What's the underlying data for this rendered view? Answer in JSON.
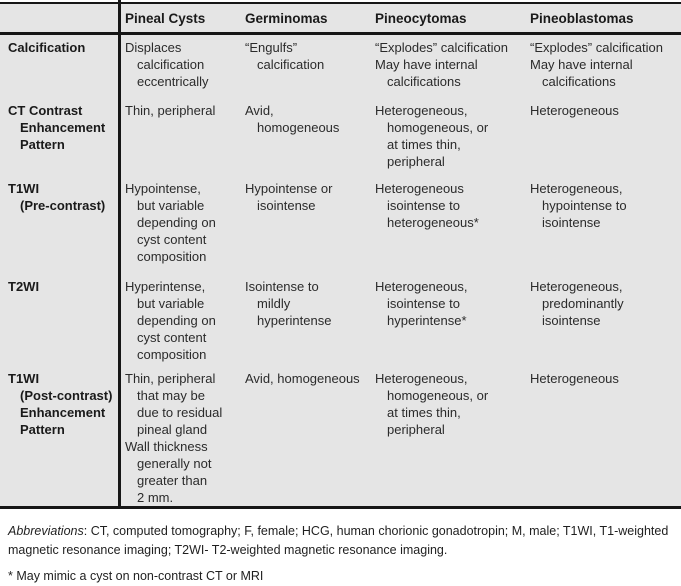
{
  "table": {
    "columns": [
      "",
      "Pineal Cysts",
      "Germinomas",
      "Pineocytomas",
      "Pineoblastomas"
    ],
    "rows": [
      {
        "label_lines": [
          {
            "t": "Calcification",
            "i": 0
          }
        ],
        "cells": [
          [
            {
              "t": "Displaces",
              "i": 0
            },
            {
              "t": "calcification",
              "i": 1
            },
            {
              "t": "eccentrically",
              "i": 1
            }
          ],
          [
            {
              "t": "“Engulfs”",
              "i": 0
            },
            {
              "t": "calcification",
              "i": 1
            }
          ],
          [
            {
              "t": "“Explodes” calcification",
              "i": 0
            },
            {
              "t": "May have internal",
              "i": 0
            },
            {
              "t": "calcifications",
              "i": 1
            }
          ],
          [
            {
              "t": "“Explodes” calcification",
              "i": 0
            },
            {
              "t": "May have internal",
              "i": 0
            },
            {
              "t": "calcifications",
              "i": 1
            }
          ]
        ]
      },
      {
        "label_lines": [
          {
            "t": "CT Contrast",
            "i": 0
          },
          {
            "t": "Enhancement",
            "i": 1
          },
          {
            "t": "Pattern",
            "i": 1
          }
        ],
        "cells": [
          [
            {
              "t": "Thin, peripheral",
              "i": 0
            }
          ],
          [
            {
              "t": "Avid,",
              "i": 0
            },
            {
              "t": "homogeneous",
              "i": 1
            }
          ],
          [
            {
              "t": "Heterogeneous,",
              "i": 0
            },
            {
              "t": "homogeneous, or",
              "i": 1
            },
            {
              "t": "at times thin,",
              "i": 1
            },
            {
              "t": "peripheral",
              "i": 1
            }
          ],
          [
            {
              "t": "Heterogeneous",
              "i": 0
            }
          ]
        ]
      },
      {
        "label_lines": [
          {
            "t": "T1WI",
            "i": 0
          },
          {
            "t": "(Pre-contrast)",
            "i": 1
          }
        ],
        "cells": [
          [
            {
              "t": "Hypointense,",
              "i": 0
            },
            {
              "t": "but variable",
              "i": 1
            },
            {
              "t": "depending on",
              "i": 1
            },
            {
              "t": "cyst content",
              "i": 1
            },
            {
              "t": "composition",
              "i": 1
            }
          ],
          [
            {
              "t": "Hypointense or",
              "i": 0
            },
            {
              "t": "isointense",
              "i": 1
            }
          ],
          [
            {
              "t": "Heterogeneous",
              "i": 0
            },
            {
              "t": "isointense to",
              "i": 1
            },
            {
              "t": "heterogeneous*",
              "i": 1
            }
          ],
          [
            {
              "t": "Heterogeneous,",
              "i": 0
            },
            {
              "t": "hypointense to",
              "i": 1
            },
            {
              "t": "isointense",
              "i": 1
            }
          ]
        ]
      },
      {
        "label_lines": [
          {
            "t": "T2WI",
            "i": 0
          }
        ],
        "cells": [
          [
            {
              "t": "Hyperintense,",
              "i": 0
            },
            {
              "t": "but variable",
              "i": 1
            },
            {
              "t": "depending on",
              "i": 1
            },
            {
              "t": "cyst content",
              "i": 1
            },
            {
              "t": "composition",
              "i": 1
            }
          ],
          [
            {
              "t": "Isointense to",
              "i": 0
            },
            {
              "t": "mildly",
              "i": 1
            },
            {
              "t": "hyperintense",
              "i": 1
            }
          ],
          [
            {
              "t": "Heterogeneous,",
              "i": 0
            },
            {
              "t": "isointense to",
              "i": 1
            },
            {
              "t": "hyperintense*",
              "i": 1
            }
          ],
          [
            {
              "t": "Heterogeneous,",
              "i": 0
            },
            {
              "t": "predominantly",
              "i": 1
            },
            {
              "t": "isointense",
              "i": 1
            }
          ]
        ]
      },
      {
        "label_lines": [
          {
            "t": "T1WI",
            "i": 0
          },
          {
            "t": "(Post-contrast)",
            "i": 1
          },
          {
            "t": "Enhancement",
            "i": 1
          },
          {
            "t": "Pattern",
            "i": 1
          }
        ],
        "cells": [
          [
            {
              "t": "Thin, peripheral",
              "i": 0
            },
            {
              "t": "that may be",
              "i": 1
            },
            {
              "t": "due to residual",
              "i": 1
            },
            {
              "t": "pineal gland",
              "i": 1
            },
            {
              "t": "Wall thickness",
              "i": 0
            },
            {
              "t": "generally not",
              "i": 1
            },
            {
              "t": "greater than",
              "i": 1
            },
            {
              "t": "2 mm.",
              "i": 1
            }
          ],
          [
            {
              "t": "Avid, homogeneous",
              "i": 0
            }
          ],
          [
            {
              "t": "Heterogeneous,",
              "i": 0
            },
            {
              "t": "homogeneous, or",
              "i": 1
            },
            {
              "t": "at times thin,",
              "i": 1
            },
            {
              "t": "peripheral",
              "i": 1
            }
          ],
          [
            {
              "t": "Heterogeneous",
              "i": 0
            }
          ]
        ]
      }
    ]
  },
  "footer": {
    "abbreviations_label": "Abbreviations",
    "abbreviations_rest": ": CT, computed tomography; F, female; HCG, human chorionic gonadotropin; M, male; T1WI, T1-weighted magnetic resonance imaging; T2WI- T2-weighted magnetic resonance imaging.",
    "footnote": "* May mimic a cyst on non-contrast CT or MRI"
  }
}
